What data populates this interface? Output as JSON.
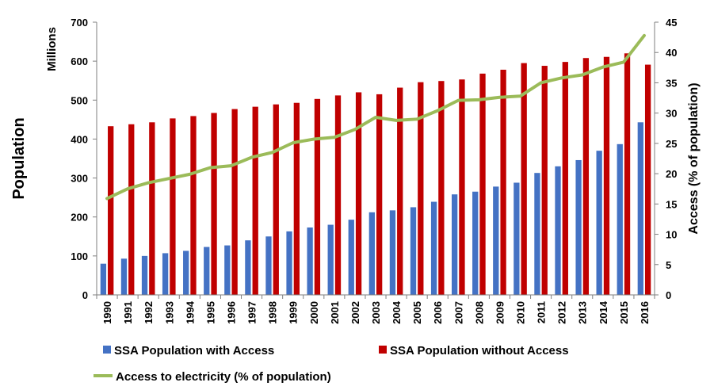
{
  "chart_data": {
    "type": "bar",
    "categories": [
      "1990",
      "1991",
      "1992",
      "1993",
      "1994",
      "1995",
      "1996",
      "1997",
      "1998",
      "1999",
      "2000",
      "2001",
      "2002",
      "2003",
      "2004",
      "2005",
      "2006",
      "2007",
      "2008",
      "2009",
      "2010",
      "2011",
      "2012",
      "2013",
      "2014",
      "2015",
      "2016"
    ],
    "series": [
      {
        "name": "SSA Population with Access",
        "type": "bar",
        "axis": "left",
        "color": "#4472c4",
        "values": [
          80,
          93,
          100,
          107,
          113,
          123,
          127,
          140,
          150,
          163,
          173,
          180,
          193,
          212,
          217,
          225,
          239,
          258,
          265,
          278,
          288,
          313,
          330,
          346,
          370,
          387,
          443
        ]
      },
      {
        "name": "SSA Population without Access",
        "type": "bar",
        "axis": "left",
        "color": "#c00000",
        "values": [
          433,
          438,
          443,
          453,
          459,
          467,
          477,
          483,
          489,
          493,
          503,
          512,
          520,
          515,
          532,
          546,
          549,
          553,
          568,
          578,
          595,
          588,
          598,
          608,
          611,
          620,
          591
        ]
      },
      {
        "name": "Access to electricity (% of population)",
        "type": "line",
        "axis": "right",
        "color": "#9bbb59",
        "values": [
          15.9,
          17.5,
          18.5,
          19.2,
          19.9,
          21.0,
          21.3,
          22.7,
          23.5,
          25.1,
          25.7,
          26.0,
          27.3,
          29.3,
          28.8,
          29.0,
          30.4,
          32.1,
          32.2,
          32.6,
          32.8,
          35.0,
          35.8,
          36.3,
          37.6,
          38.4,
          42.8
        ]
      }
    ],
    "ylabel": "Population",
    "yunit": "Millions",
    "y2label": "Access (% of population)",
    "ylim": [
      0,
      700
    ],
    "yticks": [
      0,
      100,
      200,
      300,
      400,
      500,
      600,
      700
    ],
    "y2lim": [
      0,
      45
    ],
    "y2ticks": [
      0,
      5,
      10,
      15,
      20,
      25,
      30,
      35,
      40,
      45
    ],
    "legend": "bottom"
  }
}
